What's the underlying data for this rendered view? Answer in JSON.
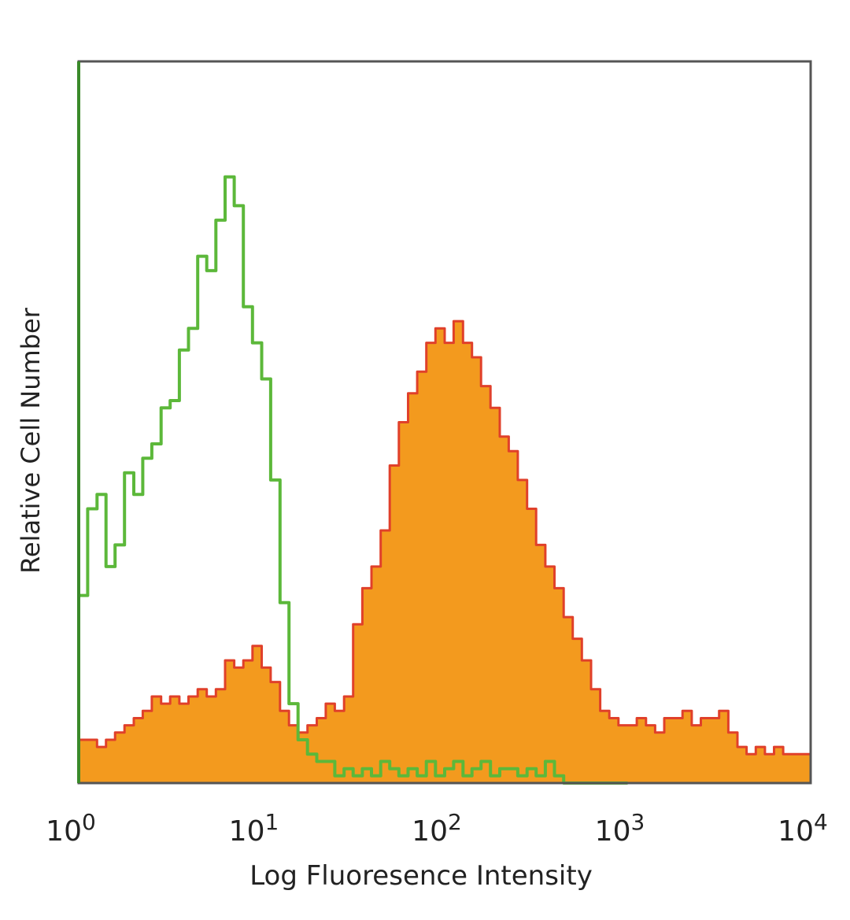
{
  "chart_data": {
    "type": "area",
    "x_scale": "log",
    "xlim": [
      1,
      10000
    ],
    "ylim": [
      0,
      100
    ],
    "xlabel": "Log Fluoresence Intensity",
    "ylabel": "Relative Cell Number",
    "x_ticks": [
      {
        "value": 1,
        "base": "10",
        "exp": "0"
      },
      {
        "value": 10,
        "base": "10",
        "exp": "1"
      },
      {
        "value": 100,
        "base": "10",
        "exp": "2"
      },
      {
        "value": 1000,
        "base": "10",
        "exp": "3"
      },
      {
        "value": 10000,
        "base": "10",
        "exp": "4"
      }
    ],
    "grid": false,
    "legend": "none",
    "series": [
      {
        "style": "filled",
        "fill_color": "#f39a1e",
        "line_color": "#e0402a",
        "x": [
          1,
          1.12,
          1.26,
          1.41,
          1.58,
          1.78,
          2.0,
          2.24,
          2.51,
          2.82,
          3.16,
          3.55,
          3.98,
          4.47,
          5.01,
          5.62,
          6.31,
          7.08,
          7.94,
          8.91,
          10.0,
          11.2,
          12.6,
          14.1,
          15.8,
          17.8,
          20.0,
          22.4,
          25.1,
          28.2,
          31.6,
          35.5,
          39.8,
          44.7,
          50.1,
          56.2,
          63.1,
          70.8,
          79.4,
          89.1,
          100,
          112,
          126,
          141,
          158,
          178,
          200,
          224,
          251,
          282,
          316,
          355,
          398,
          447,
          501,
          562,
          631,
          708,
          794,
          891,
          1000,
          1122,
          1259,
          1413,
          1585,
          1778,
          1995,
          2239,
          2512,
          2818,
          3162,
          3548,
          3981,
          4467,
          5012,
          5623,
          6310,
          7079,
          7943,
          8913,
          10000
        ],
        "y": [
          6,
          6,
          5,
          6,
          7,
          8,
          9,
          10,
          12,
          11,
          12,
          11,
          12,
          13,
          12,
          13,
          17,
          16,
          17,
          19,
          16,
          14,
          10,
          8,
          7,
          8,
          9,
          11,
          10,
          12,
          22,
          27,
          30,
          35,
          44,
          50,
          54,
          57,
          61,
          63,
          61,
          64,
          61,
          59,
          55,
          52,
          48,
          46,
          42,
          38,
          33,
          30,
          27,
          23,
          20,
          17,
          13,
          10,
          9,
          8,
          8,
          9,
          8,
          7,
          9,
          9,
          10,
          8,
          9,
          9,
          10,
          7,
          5,
          4,
          5,
          4,
          5,
          4,
          4,
          4,
          8
        ]
      },
      {
        "style": "outline",
        "line_color": "#5cb83a",
        "x": [
          1,
          1.12,
          1.26,
          1.41,
          1.58,
          1.78,
          2.0,
          2.24,
          2.51,
          2.82,
          3.16,
          3.55,
          3.98,
          4.47,
          5.01,
          5.62,
          6.31,
          7.08,
          7.94,
          8.91,
          10.0,
          11.2,
          12.6,
          14.1,
          15.8,
          17.8,
          20.0,
          22.4,
          25.1,
          28.2,
          31.6,
          35.5,
          39.8,
          44.7,
          50.1,
          56.2,
          63.1,
          70.8,
          79.4,
          89.1,
          100,
          112,
          126,
          141,
          158,
          178,
          200,
          224,
          251,
          282,
          316,
          355,
          398,
          447,
          501,
          562,
          631,
          708,
          794,
          891,
          1000
        ],
        "y": [
          26,
          38,
          40,
          30,
          33,
          43,
          40,
          45,
          47,
          52,
          53,
          60,
          63,
          73,
          71,
          78,
          84,
          80,
          66,
          61,
          56,
          42,
          25,
          11,
          6,
          4,
          3,
          3,
          1,
          2,
          1,
          2,
          1,
          3,
          2,
          1,
          2,
          1,
          3,
          1,
          2,
          3,
          1,
          2,
          3,
          1,
          2,
          2,
          1,
          2,
          1,
          3,
          1,
          0,
          0,
          0,
          0,
          0,
          0,
          0,
          0
        ]
      }
    ]
  }
}
